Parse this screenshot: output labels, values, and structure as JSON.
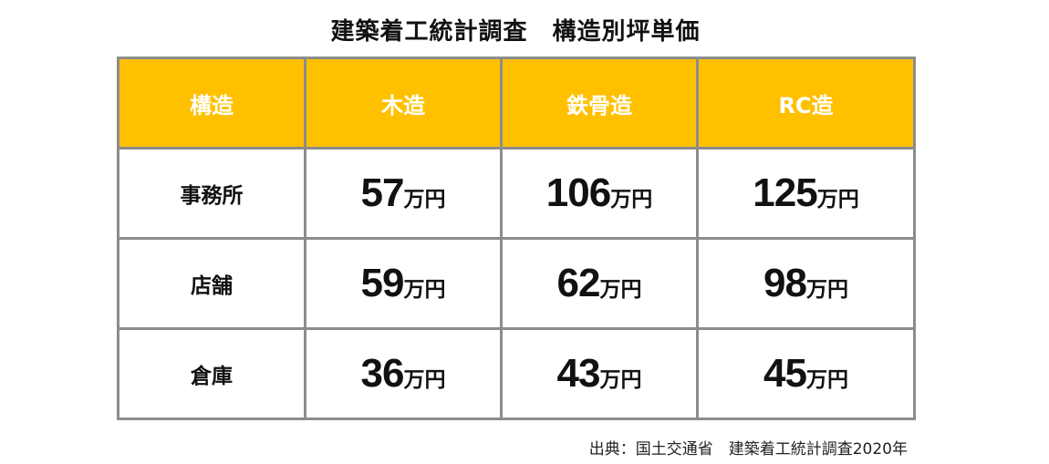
{
  "title": "建築着工統計調査　構造別坪単価",
  "table": {
    "header": [
      "構造",
      "木造",
      "鉄骨造",
      "RC造"
    ],
    "unit": "万円",
    "rows": [
      {
        "label": "事務所",
        "values": [
          57,
          106,
          125
        ]
      },
      {
        "label": "店舗",
        "values": [
          59,
          62,
          98
        ]
      },
      {
        "label": "倉庫",
        "values": [
          36,
          43,
          45
        ]
      }
    ]
  },
  "source": "出典：国土交通省　建築着工統計調査2020年"
}
